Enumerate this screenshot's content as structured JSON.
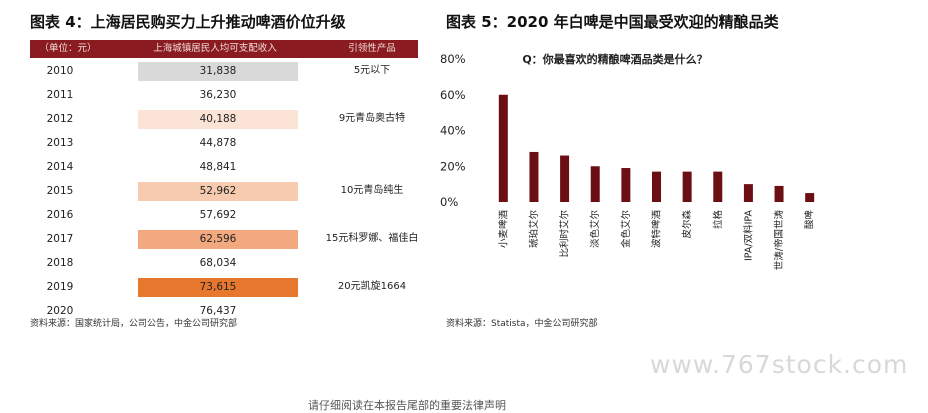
{
  "left": {
    "title": "图表 4：上海居民购买力上升推动啤酒价位升级",
    "header": [
      "（单位：元）",
      "上海城镇居民人均可支配收入",
      "引领性产品"
    ],
    "rows": [
      {
        "year": "2010",
        "value": "31,838",
        "product": "5元以下",
        "color": "#d9d9d9"
      },
      {
        "year": "2011",
        "value": "36,230",
        "product": "",
        "color": ""
      },
      {
        "year": "2012",
        "value": "40,188",
        "product": "9元青岛奥古特",
        "color": "#fbe3d6"
      },
      {
        "year": "2013",
        "value": "44,878",
        "product": "",
        "color": ""
      },
      {
        "year": "2014",
        "value": "48,841",
        "product": "",
        "color": ""
      },
      {
        "year": "2015",
        "value": "52,962",
        "product": "10元青岛纯生",
        "color": "#f7cbb0"
      },
      {
        "year": "2016",
        "value": "57,692",
        "product": "",
        "color": ""
      },
      {
        "year": "2017",
        "value": "62,596",
        "product": "15元科罗娜、福佳白",
        "color": "#f3a97f"
      },
      {
        "year": "2018",
        "value": "68,034",
        "product": "",
        "color": ""
      },
      {
        "year": "2019",
        "value": "73,615",
        "product": "20元凯旋1664",
        "color": "#e8772e"
      },
      {
        "year": "2020",
        "value": "76,437",
        "product": "",
        "color": ""
      }
    ],
    "source": "资料来源：国家统计局，公司公告，中金公司研究部"
  },
  "right": {
    "title": "图表 5：2020 年白啤是中国最受欢迎的精酿品类",
    "source": "资料来源：Statista，中金公司研究部"
  },
  "chart_data": {
    "type": "bar",
    "title": "Q：你最喜欢的精酿啤酒品类是什么？",
    "categories": [
      "小麦啤酒",
      "琥珀艾尔",
      "比利时艾尔",
      "淡色艾尔",
      "金色艾尔",
      "波特啤酒",
      "皮尔森",
      "拉格",
      "IPA/双料IPA",
      "世涛/帝国世涛",
      "酸啤"
    ],
    "values": [
      60,
      28,
      26,
      20,
      19,
      17,
      17,
      17,
      10,
      9,
      5
    ],
    "yticks": [
      "0%",
      "20%",
      "40%",
      "60%",
      "80%"
    ],
    "ylim": [
      0,
      80
    ],
    "bar_color": "#6b0f14",
    "grid": false
  },
  "footer": "请仔细阅读在本报告尾部的重要法律声明",
  "watermark": "www.767stock.com"
}
